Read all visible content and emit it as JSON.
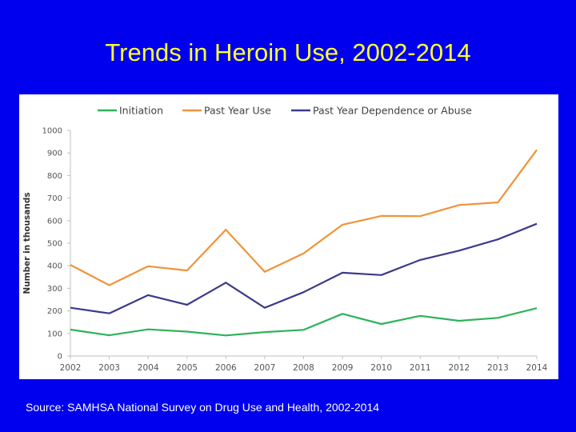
{
  "slide": {
    "title": "Trends in Heroin Use, 2002-2014",
    "source": "Source: SAMHSA National Survey on Drug Use and Health, 2002-2014"
  },
  "chart_data": {
    "type": "line",
    "title": "Trends in Heroin Use, 2002-2014",
    "xlabel": "",
    "ylabel": "Number in thousands",
    "x": [
      "2002",
      "2003",
      "2004",
      "2005",
      "2006",
      "2007",
      "2008",
      "2009",
      "2010",
      "2011",
      "2012",
      "2013",
      "2014"
    ],
    "ylim": [
      0,
      1000
    ],
    "yticks": [
      0,
      100,
      200,
      300,
      400,
      500,
      600,
      700,
      800,
      900,
      1000
    ],
    "grid": false,
    "legend_position": "top",
    "series": [
      {
        "name": "Initiation",
        "color": "#2db35a",
        "values": [
          117,
          92,
          118,
          108,
          91,
          106,
          116,
          187,
          142,
          178,
          156,
          169,
          212
        ]
      },
      {
        "name": "Past Year Use",
        "color": "#f0933a",
        "values": [
          404,
          314,
          398,
          379,
          560,
          373,
          455,
          582,
          621,
          620,
          669,
          681,
          914
        ]
      },
      {
        "name": "Past Year Dependence or Abuse",
        "color": "#3a3a8c",
        "values": [
          214,
          189,
          270,
          227,
          325,
          214,
          283,
          369,
          359,
          426,
          467,
          517,
          586
        ]
      }
    ]
  }
}
